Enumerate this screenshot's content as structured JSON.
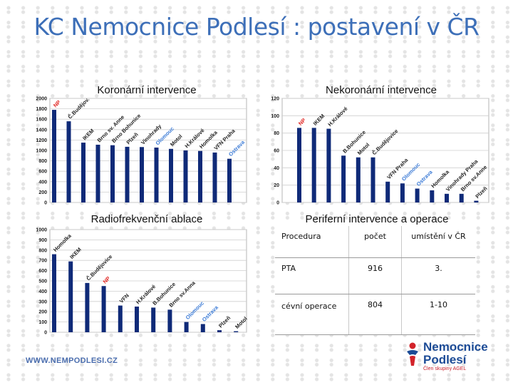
{
  "title": "KC Nemocnice Podlesí : postavení v ČR",
  "charts": {
    "koronarni_title": "Koronární intervence",
    "nekoronarni_title": "Nekoronární intervence",
    "radiofrekvencni_title": "Radiofrekvenční ablace",
    "periferni_title": "Periferní intervence a operace"
  },
  "highlight_colors": {
    "np": "#e0201c",
    "olomouc": "#3a7ad6",
    "ostrava": "#3a7ad6",
    "default_label": "#222222",
    "bar": "#0f2a78"
  },
  "chart_data": [
    {
      "type": "bar",
      "title": "Koronární intervence",
      "ylim": [
        0,
        2000
      ],
      "yticks": [
        0,
        200,
        400,
        600,
        800,
        1000,
        1200,
        1400,
        1600,
        1800,
        2000
      ],
      "categories": [
        "NP",
        "Č.Budějov.",
        "IKEM",
        "Brno sv. Anne",
        "Brno Bohunice",
        "Plzeň",
        "Vinohrady",
        "Olomouc",
        "Motol",
        "H.Králové",
        "Homolka",
        "VFN Praha",
        "Ostrava"
      ],
      "values": [
        1780,
        1560,
        1150,
        1110,
        1100,
        1070,
        1065,
        1055,
        1030,
        1000,
        990,
        960,
        840
      ]
    },
    {
      "type": "bar",
      "title": "Nekoronární intervence",
      "ylim": [
        0,
        120
      ],
      "yticks": [
        0,
        20,
        40,
        60,
        80,
        100,
        120
      ],
      "categories": [
        "NP",
        "IKEM",
        "H.Králové",
        "B.Bohunice",
        "Motol",
        "Č.Budějovice",
        "VFN Praha",
        "Olomouc",
        "Ostrava",
        "Homolka",
        "Vinohrady Praha",
        "Brno sv.Anne",
        "Plzeň"
      ],
      "values": [
        86,
        86,
        85,
        54,
        52,
        52,
        24,
        22,
        16,
        14,
        10,
        10,
        2
      ]
    },
    {
      "type": "bar",
      "title": "Radiofrekvenční ablace",
      "ylim": [
        0,
        1000
      ],
      "yticks": [
        0,
        100,
        200,
        300,
        400,
        500,
        600,
        700,
        800,
        900,
        1000
      ],
      "categories": [
        "Homolka",
        "IKEM",
        "Č.Budějovice",
        "NP",
        "VFN",
        "H.Králové",
        "B.Bohunice",
        "Brno sv.Anna",
        "Olomouc",
        "Ostrava",
        "Plzeň",
        "Motol"
      ],
      "values": [
        760,
        690,
        480,
        450,
        260,
        250,
        240,
        220,
        100,
        80,
        20,
        10
      ]
    },
    {
      "type": "table",
      "title": "Periferní intervence a operace",
      "columns": [
        "Procedura",
        "počet",
        "umístění v ČR"
      ],
      "rows": [
        [
          "PTA",
          "916",
          "3."
        ],
        [
          "cévní operace",
          "804",
          "1-10"
        ]
      ]
    }
  ],
  "footer": {
    "url": "WWW.NEMPODLESI.CZ"
  },
  "logo": {
    "line1": "Nemocnice",
    "line2": "Podlesí",
    "tagline": "Člen skupiny AGEL"
  }
}
